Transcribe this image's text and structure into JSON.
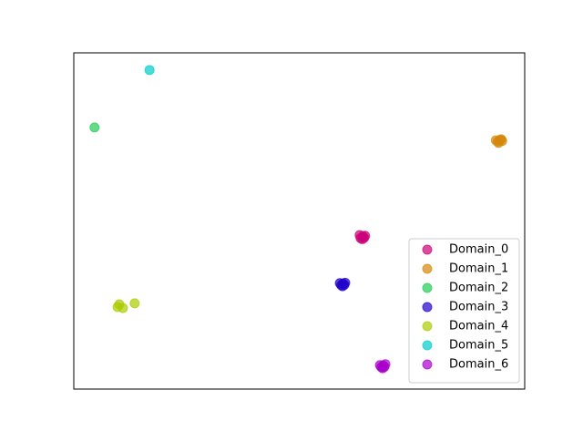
{
  "chart_data": {
    "type": "scatter",
    "xlim": [
      0,
      100
    ],
    "ylim": [
      0,
      100
    ],
    "legend": "lower right",
    "alpha": 0.7,
    "series": [
      {
        "name": "Domain_0",
        "color": "#cc0077",
        "x": [
          63.4,
          64.6,
          64.0,
          63.6,
          64.4,
          64.1
        ],
        "values": [
          45.8,
          45.6,
          44.6,
          44.9,
          45.0,
          45.5
        ]
      },
      {
        "name": "Domain_1",
        "color": "#d4870c",
        "x": [
          93.6,
          94.8,
          94.2,
          95.0,
          94.0,
          94.5
        ],
        "values": [
          74.0,
          74.3,
          73.2,
          73.8,
          73.6,
          74.1
        ]
      },
      {
        "name": "Domain_2",
        "color": "#22cc55",
        "x": [
          4.6
        ],
        "values": [
          77.8
        ]
      },
      {
        "name": "Domain_3",
        "color": "#2200cc",
        "x": [
          59.0,
          60.2,
          59.6,
          59.3,
          60.0,
          59.7
        ],
        "values": [
          31.5,
          31.6,
          30.6,
          30.9,
          31.0,
          31.4
        ]
      },
      {
        "name": "Domain_4",
        "color": "#aacc00",
        "x": [
          10.1,
          13.5,
          9.7,
          10.9
        ],
        "values": [
          25.2,
          25.5,
          24.4,
          24.1
        ]
      },
      {
        "name": "Domain_5",
        "color": "#00cccc",
        "x": [
          16.8
        ],
        "values": [
          94.9
        ]
      },
      {
        "name": "Domain_6",
        "color": "#aa00cc",
        "x": [
          67.9,
          69.1,
          68.5,
          68.2,
          68.9,
          68.6
        ],
        "values": [
          7.1,
          7.4,
          6.2,
          6.5,
          6.6,
          7.0
        ]
      }
    ]
  }
}
